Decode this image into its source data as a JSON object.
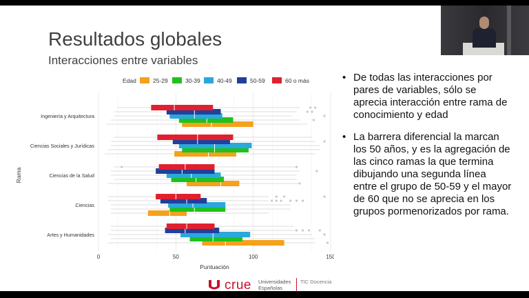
{
  "slide": {
    "title": "Resultados globales",
    "subtitle": "Interacciones entre variables",
    "bullets": [
      "De todas las interacciones por pares de variables, sólo se aprecia interacción entre rama de conocimiento y edad",
      "La barrera diferencial la marcan los 50 años, y es la agregación de las cinco ramas la que termina dibujando una segunda línea entre el grupo de 50-59 y el mayor de 60 que no se aprecia en los grupos pormenorizados por rama."
    ]
  },
  "footer": {
    "logo_word": "crue",
    "logo_sub": "Universidades Españolas",
    "logo_tic": "TIC Docencia",
    "brand_color": "#c8102e"
  },
  "webcam": {
    "icon": "presenter-video-feed"
  },
  "chart_data": {
    "type": "boxplot",
    "xlabel": "Puntuación",
    "ylabel": "Rama",
    "xlim": [
      0,
      150
    ],
    "xticks": [
      0,
      50,
      100,
      150
    ],
    "legend_title": "Edad",
    "legend_position": "top",
    "grid": true,
    "groups": [
      "Edad 25-29",
      "30-39",
      "40-49",
      "50-59",
      "60 o más"
    ],
    "legend_labels": [
      "25-29",
      "30-39",
      "40-49",
      "50-59",
      "60 o más"
    ],
    "colors": [
      "#f5a11c",
      "#1fc11f",
      "#2aa8dc",
      "#21409a",
      "#e0202e"
    ],
    "categories": [
      {
        "name": "Ingeniería y Arquitectura",
        "boxes": [
          {
            "group": "25-29",
            "whisker_low": 5,
            "q1": 54,
            "median": 73,
            "q3": 100,
            "whisker_high": 135
          },
          {
            "group": "30-39",
            "whisker_low": 8,
            "q1": 52,
            "median": 70,
            "q3": 87,
            "whisker_high": 130,
            "outliers": [
              139
            ]
          },
          {
            "group": "40-49",
            "whisker_low": 10,
            "q1": 46,
            "median": 62,
            "q3": 80,
            "whisker_high": 125,
            "outliers": [
              146
            ]
          },
          {
            "group": "50-59",
            "whisker_low": 10,
            "q1": 44,
            "median": 62,
            "q3": 79,
            "whisker_high": 128,
            "outliers": [
              135,
              138
            ]
          },
          {
            "group": "60 o más",
            "whisker_low": 12,
            "q1": 34,
            "median": 49,
            "q3": 74,
            "whisker_high": 130,
            "outliers": [
              137,
              140
            ]
          }
        ]
      },
      {
        "name": "Ciencias Sociales y Jurídicas",
        "boxes": [
          {
            "group": "25-29",
            "whisker_low": 4,
            "q1": 49,
            "median": 71,
            "q3": 89,
            "whisker_high": 140
          },
          {
            "group": "30-39",
            "whisker_low": 6,
            "q1": 54,
            "median": 75,
            "q3": 97,
            "whisker_high": 143
          },
          {
            "group": "40-49",
            "whisker_low": 8,
            "q1": 52,
            "median": 75,
            "q3": 99,
            "whisker_high": 143
          },
          {
            "group": "50-59",
            "whisker_low": 8,
            "q1": 48,
            "median": 64,
            "q3": 85,
            "whisker_high": 140,
            "outliers": [
              146
            ]
          },
          {
            "group": "60 o más",
            "whisker_low": 10,
            "q1": 38,
            "median": 64,
            "q3": 87,
            "whisker_high": 138
          }
        ]
      },
      {
        "name": "Ciencias de la Salud",
        "boxes": [
          {
            "group": "25-29",
            "whisker_low": 6,
            "q1": 57,
            "median": 79,
            "q3": 91,
            "whisker_high": 130,
            "outliers": [
              130
            ]
          },
          {
            "group": "30-39",
            "whisker_low": 10,
            "q1": 47,
            "median": 63,
            "q3": 81,
            "whisker_high": 128
          },
          {
            "group": "40-49",
            "whisker_low": 8,
            "q1": 44,
            "median": 60,
            "q3": 79,
            "whisker_high": 128
          },
          {
            "group": "50-59",
            "whisker_low": 8,
            "q1": 37,
            "median": 54,
            "q3": 75,
            "whisker_high": 130,
            "outliers": [
              141
            ]
          },
          {
            "group": "60 o más",
            "whisker_low": 10,
            "q1": 39,
            "median": 56,
            "q3": 75,
            "whisker_high": 128,
            "outliers": [
              128,
              15
            ]
          }
        ]
      },
      {
        "name": "Ciencias",
        "boxes": [
          {
            "group": "25-29",
            "whisker_low": 8,
            "q1": 32,
            "median": 46,
            "q3": 57,
            "whisker_high": 110
          },
          {
            "group": "30-39",
            "whisker_low": 8,
            "q1": 46,
            "median": 62,
            "q3": 82,
            "whisker_high": 124
          },
          {
            "group": "40-49",
            "whisker_low": 8,
            "q1": 45,
            "median": 61,
            "q3": 82,
            "whisker_high": 124
          },
          {
            "group": "50-59",
            "whisker_low": 6,
            "q1": 40,
            "median": 57,
            "q3": 70,
            "whisker_high": 110,
            "outliers": [
              112,
              115,
              118,
              124,
              128,
              132
            ]
          },
          {
            "group": "60 o más",
            "whisker_low": 6,
            "q1": 37,
            "median": 50,
            "q3": 66,
            "whisker_high": 110,
            "outliers": [
              115,
              120,
              146
            ]
          }
        ]
      },
      {
        "name": "Artes y Humanidades",
        "boxes": [
          {
            "group": "25-29",
            "whisker_low": 6,
            "q1": 67,
            "median": 82,
            "q3": 120,
            "whisker_high": 140,
            "outliers": [
              148
            ]
          },
          {
            "group": "30-39",
            "whisker_low": 8,
            "q1": 59,
            "median": 74,
            "q3": 93,
            "whisker_high": 140
          },
          {
            "group": "40-49",
            "whisker_low": 6,
            "q1": 53,
            "median": 74,
            "q3": 98,
            "whisker_high": 138,
            "outliers": [
              146
            ]
          },
          {
            "group": "50-59",
            "whisker_low": 8,
            "q1": 43,
            "median": 56,
            "q3": 78,
            "whisker_high": 128,
            "outliers": [
              128,
              132,
              136,
              143
            ]
          },
          {
            "group": "60 o más",
            "whisker_low": 8,
            "q1": 44,
            "median": 57,
            "q3": 75,
            "whisker_high": 126
          }
        ]
      }
    ]
  }
}
